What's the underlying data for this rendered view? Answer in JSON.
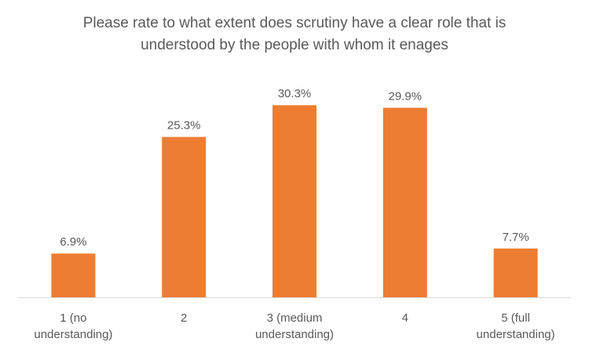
{
  "chart_data": {
    "type": "bar",
    "title": "Please rate to what extent does scrutiny have a clear role that is understood by the people with whom it enages",
    "categories": [
      [
        "1 (no",
        "understanding)"
      ],
      [
        "2"
      ],
      [
        "3 (medium",
        "understanding)"
      ],
      [
        "4"
      ],
      [
        "5 (full",
        "understanding)"
      ]
    ],
    "values": [
      6.9,
      25.3,
      30.3,
      29.9,
      7.7
    ],
    "data_labels": [
      "6.9%",
      "25.3%",
      "30.3%",
      "29.9%",
      "7.7%"
    ],
    "unit": "%",
    "ylim": [
      0,
      33
    ],
    "grid": false,
    "legend": "none",
    "bar_color": "#ED7D31",
    "axis_color": "#D9D9D9"
  }
}
